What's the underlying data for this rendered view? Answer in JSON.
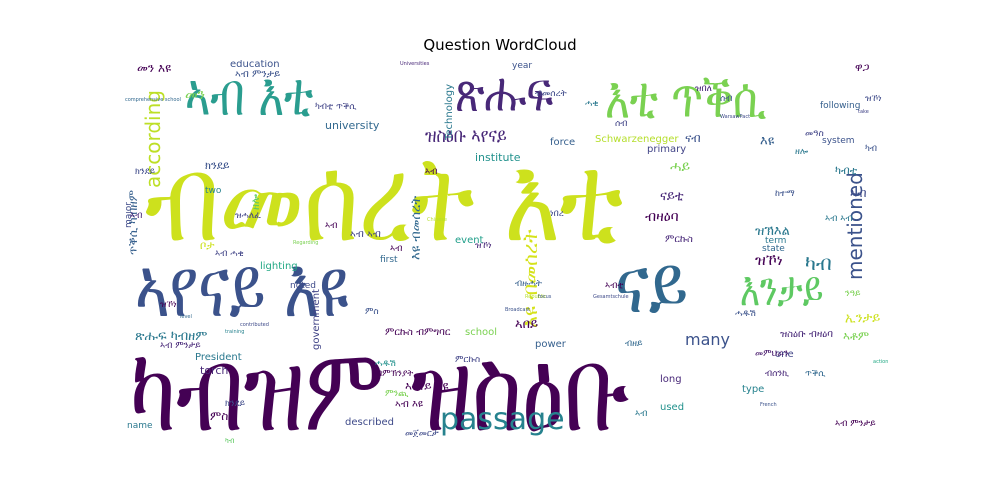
{
  "figure": {
    "title": "Question WordCloud"
  },
  "words": [
    {
      "text": "ብመሰረት እቲ",
      "color": "#cde11d"
    },
    {
      "text": "ካብዝም ዝስዕቡ",
      "color": "#440154"
    },
    {
      "text": "ኣየናይ እዩ",
      "color": "#3b528b"
    },
    {
      "text": "ናይ",
      "color": "#31688e"
    },
    {
      "text": "ኣብ እቲ",
      "color": "#2a9d8f"
    },
    {
      "text": "ጽሑፍ",
      "color": "#482878"
    },
    {
      "text": "እቲ ጥቕሲ",
      "color": "#7ad151"
    },
    {
      "text": "እንታይ",
      "color": "#5ec962"
    },
    {
      "text": "passage",
      "color": "#26828e"
    },
    {
      "text": "according",
      "color": "#bddf26"
    },
    {
      "text": "mentioned",
      "color": "#3b528b"
    },
    {
      "text": "ዝስዕቡ ኣየናይ",
      "color": "#482878"
    },
    {
      "text": "እዩ ብመሰረት",
      "color": "#d5e21a"
    },
    {
      "text": "ዝኾነ",
      "color": "#440154"
    },
    {
      "text": "ካብ",
      "color": "#2a788e"
    },
    {
      "text": "many",
      "color": "#3b528b"
    },
    {
      "text": "Schwarzenegger",
      "color": "#b5de2b"
    },
    {
      "text": "education",
      "color": "#3b528b"
    },
    {
      "text": "university",
      "color": "#31688e"
    },
    {
      "text": "institute",
      "color": "#21918c"
    },
    {
      "text": "Technology",
      "color": "#2a788e"
    },
    {
      "text": "primary",
      "color": "#414487"
    },
    {
      "text": "force",
      "color": "#355f8d"
    },
    {
      "text": "event",
      "color": "#1f9e89"
    },
    {
      "text": "lighting",
      "color": "#22a884"
    },
    {
      "text": "noted",
      "color": "#3e4a89"
    },
    {
      "text": "first",
      "color": "#31688e"
    },
    {
      "text": "school",
      "color": "#7ad151"
    },
    {
      "text": "power",
      "color": "#355f8d"
    },
    {
      "text": "President",
      "color": "#2a788e"
    },
    {
      "text": "torch",
      "color": "#482878"
    },
    {
      "text": "government",
      "color": "#414487"
    },
    {
      "text": "described",
      "color": "#3e4a89"
    },
    {
      "text": "used",
      "color": "#21918c"
    },
    {
      "text": "long",
      "color": "#482878"
    },
    {
      "text": "type",
      "color": "#26828e"
    },
    {
      "text": "one",
      "color": "#414487"
    },
    {
      "text": "term",
      "color": "#2a788e"
    },
    {
      "text": "state",
      "color": "#31688e"
    },
    {
      "text": "system",
      "color": "#3b528b"
    },
    {
      "text": "following",
      "color": "#355f8d"
    },
    {
      "text": "year",
      "color": "#3b528b"
    },
    {
      "text": "major",
      "color": "#3e4a89"
    },
    {
      "text": "two",
      "color": "#26828e"
    },
    {
      "text": "name",
      "color": "#2a788e"
    },
    {
      "text": "comprehensive school",
      "color": "#31688e"
    },
    {
      "text": "Chinese",
      "color": "#b5de2b"
    },
    {
      "text": "training",
      "color": "#26828e"
    },
    {
      "text": "contributed",
      "color": "#3e4a89"
    },
    {
      "text": "Regarding",
      "color": "#7ad151"
    },
    {
      "text": "Republic",
      "color": "#b5de2b"
    },
    {
      "text": "Broadcast",
      "color": "#3b528b"
    },
    {
      "text": "Gesamtschule",
      "color": "#3e4a89"
    },
    {
      "text": "WarsawPact",
      "color": "#3e4a89"
    },
    {
      "text": "French",
      "color": "#3b528b"
    },
    {
      "text": "Universities",
      "color": "#482878"
    },
    {
      "text": "focus",
      "color": "#3b528b"
    },
    {
      "text": "action",
      "color": "#22a884"
    },
    {
      "text": "level",
      "color": "#31688e"
    },
    {
      "text": "take",
      "color": "#414487"
    },
    {
      "text": "መን እዩ",
      "color": "#440154"
    },
    {
      "text": "ኣብ ምንታይ",
      "color": "#3b528b"
    },
    {
      "text": "ጽሑፍ ካብዘም",
      "color": "#2a788e"
    },
    {
      "text": "ጥቕሲ ካብዘም",
      "color": "#355f8d"
    },
    {
      "text": "ኣብ እዩ",
      "color": "#440154"
    },
    {
      "text": "ዝስዕቡ ብዛዕባ",
      "color": "#482878"
    },
    {
      "text": "ምርኩስ ብምግባር",
      "color": "#440154"
    },
    {
      "text": "መምህራን",
      "color": "#481a6c"
    },
    {
      "text": "ዘሎ",
      "color": "#5ec962"
    },
    {
      "text": "ቦታ",
      "color": "#cde11d"
    },
    {
      "text": "ብዛዕባ",
      "color": "#440154"
    },
    {
      "text": "ኣበይ",
      "color": "#440154"
    },
    {
      "text": "እዩ ብመሰረት",
      "color": "#31688e"
    },
    {
      "text": "ኣየናይ እዩ",
      "color": "#440154"
    },
    {
      "text": "ናብ",
      "color": "#3b528b"
    },
    {
      "text": "ናይቲ",
      "color": "#482878"
    },
    {
      "text": "ሓይ",
      "color": "#7ad151"
    },
    {
      "text": "ዝኽእል",
      "color": "#2a788e"
    },
    {
      "text": "ኢንታይ",
      "color": "#cde11d"
    },
    {
      "text": "ክንደይ",
      "color": "#3b528b"
    },
    {
      "text": "መን",
      "color": "#7ad151"
    },
    {
      "text": "ኣብ",
      "color": "#3e4a89"
    },
    {
      "text": "ምስ",
      "color": "#440154"
    },
    {
      "text": "ኣብ ኣብ",
      "color": "#414487"
    },
    {
      "text": "ኣቶም",
      "color": "#7ad151"
    },
    {
      "text": "እዩ",
      "color": "#355f8d"
    },
    {
      "text": "ካብቲ",
      "color": "#2a788e"
    },
    {
      "text": "ዋጋ",
      "color": "#440154"
    },
    {
      "text": "ምርኩስ",
      "color": "#482878"
    },
    {
      "text": "ካብቲ ጥቕሲ",
      "color": "#414487"
    },
    {
      "text": "ኣብቲ",
      "color": "#440154"
    },
    {
      "text": "ንዓይ",
      "color": "#7ad151"
    },
    {
      "text": "ሓዱሽ",
      "color": "#3b528b"
    },
    {
      "text": "ክንደይ",
      "color": "#3e4a89"
    },
    {
      "text": "ዝኾነ",
      "color": "#440154"
    },
    {
      "text": "ኣብ ምንታይ",
      "color": "#482878"
    },
    {
      "text": "ኣብ ሓቂ",
      "color": "#414487"
    },
    {
      "text": "ምስ",
      "color": "#3b528b"
    },
    {
      "text": "ዝኾነ",
      "color": "#482878"
    },
    {
      "text": "ኣብ ኣብ",
      "color": "#2a788e"
    },
    {
      "text": "ነበረ",
      "color": "#3e4a89"
    },
    {
      "text": "ሰብ",
      "color": "#414487"
    },
    {
      "text": "ካብ",
      "color": "#3b528b"
    },
    {
      "text": "ብመሰረት",
      "color": "#3e4a89"
    },
    {
      "text": "ኣብ",
      "color": "#440154"
    },
    {
      "text": "ጥቕሲ",
      "color": "#31688e"
    },
    {
      "text": "ዝሓለፈ",
      "color": "#414487"
    },
    {
      "text": "ሓዱሽ",
      "color": "#21918c"
    },
    {
      "text": "ዘሎ",
      "color": "#2a788e"
    },
    {
      "text": "ምርኩስ",
      "color": "#414487"
    },
    {
      "text": "ብዘይ",
      "color": "#31688e"
    },
    {
      "text": "ኣብ",
      "color": "#440154"
    },
    {
      "text": "ሰብ",
      "color": "#3b528b"
    },
    {
      "text": "ኣብ",
      "color": "#482878"
    },
    {
      "text": "ሓቂ",
      "color": "#2a788e"
    },
    {
      "text": "ዝበለ",
      "color": "#482878"
    },
    {
      "text": "ዝኾነ",
      "color": "#3e4a89"
    },
    {
      "text": "ካብ",
      "color": "#5ec962"
    },
    {
      "text": "ክንደይ",
      "color": "#3e4a89"
    },
    {
      "text": "ብምኽንያት",
      "color": "#440154"
    },
    {
      "text": "ምንጪ",
      "color": "#7ad151"
    },
    {
      "text": "ኣብ",
      "color": "#440154"
    },
    {
      "text": "መጀመርታ",
      "color": "#3e4a89"
    },
    {
      "text": "ብዙሓት",
      "color": "#355f8d"
    },
    {
      "text": "ከተማ",
      "color": "#3b528b"
    },
    {
      "text": "ኣብ ምንታይ",
      "color": "#440154"
    },
    {
      "text": "ብሰንኪ",
      "color": "#482878"
    },
    {
      "text": "መዓስ",
      "color": "#414487"
    },
    {
      "text": "ኣብ",
      "color": "#2a788e"
    }
  ]
}
